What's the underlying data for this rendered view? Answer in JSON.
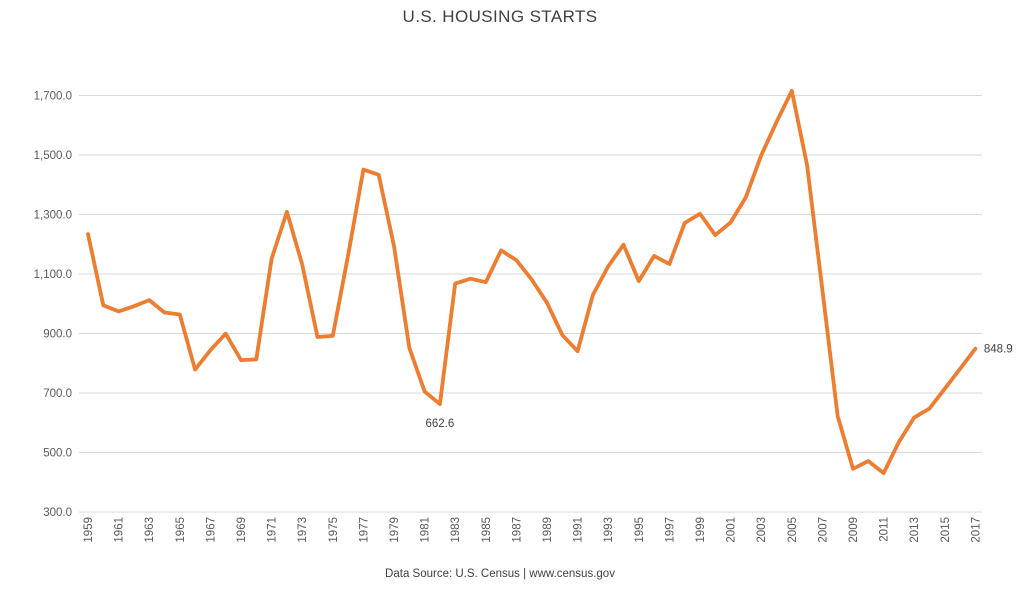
{
  "chart_data": {
    "type": "line",
    "title": "U.S. HOUSING STARTS",
    "source_caption": "Data Source: U.S. Census | www.census.gov",
    "xlabel": "",
    "ylabel": "",
    "ylim": [
      300,
      1700
    ],
    "ytick_step": 200,
    "grid": true,
    "legend": "none",
    "line_color": "#ED7D31",
    "gridline_color": "#D9D9D9",
    "axis_label_color": "#595959",
    "text_color": "#404040",
    "x": [
      1959,
      1960,
      1961,
      1962,
      1963,
      1964,
      1965,
      1966,
      1967,
      1968,
      1969,
      1970,
      1971,
      1972,
      1973,
      1974,
      1975,
      1976,
      1977,
      1978,
      1979,
      1980,
      1981,
      1982,
      1983,
      1984,
      1985,
      1986,
      1987,
      1988,
      1989,
      1990,
      1991,
      1992,
      1993,
      1994,
      1995,
      1996,
      1997,
      1998,
      1999,
      2000,
      2001,
      2002,
      2003,
      2004,
      2005,
      2006,
      2007,
      2008,
      2009,
      2010,
      2011,
      2012,
      2013,
      2014,
      2015,
      2016,
      2017
    ],
    "values": [
      1234.0,
      994.7,
      974.3,
      991.4,
      1012.4,
      970.5,
      963.7,
      778.6,
      843.9,
      899.4,
      810.6,
      812.9,
      1151.0,
      1309.2,
      1132.0,
      888.1,
      892.2,
      1162.4,
      1450.9,
      1433.3,
      1194.1,
      852.2,
      705.4,
      662.6,
      1067.6,
      1084.2,
      1072.4,
      1179.4,
      1146.4,
      1081.3,
      1003.3,
      894.8,
      840.4,
      1029.9,
      1125.7,
      1198.4,
      1076.2,
      1160.9,
      1133.7,
      1271.4,
      1302.4,
      1230.9,
      1273.3,
      1358.6,
      1499.0,
      1610.5,
      1715.8,
      1465.4,
      1046.0,
      622.0,
      445.1,
      471.2,
      430.6,
      535.3,
      617.6,
      647.9,
      714.5,
      781.5,
      848.9
    ],
    "ytick_values": [
      1700,
      1500,
      1300,
      1100,
      900,
      700,
      500,
      300
    ],
    "ytick_labels": [
      "1,700.0",
      "1,500.0",
      "1,300.0",
      "1,100.0",
      "900.0",
      "700.0",
      "500.0",
      "300.0"
    ],
    "xtick_labels": [
      "1959",
      "1961",
      "1963",
      "1965",
      "1967",
      "1969",
      "1971",
      "1973",
      "1975",
      "1977",
      "1979",
      "1981",
      "1983",
      "1985",
      "1987",
      "1989",
      "1991",
      "1993",
      "1995",
      "1997",
      "1999",
      "2001",
      "2003",
      "2005",
      "2007",
      "2009",
      "2011",
      "2013",
      "2015",
      "2017"
    ],
    "annotations": [
      {
        "label": "662.6",
        "year": 1982,
        "value": 662.6,
        "placement": "below"
      },
      {
        "label": "848.9",
        "year": 2017,
        "value": 848.9,
        "placement": "right"
      }
    ]
  }
}
